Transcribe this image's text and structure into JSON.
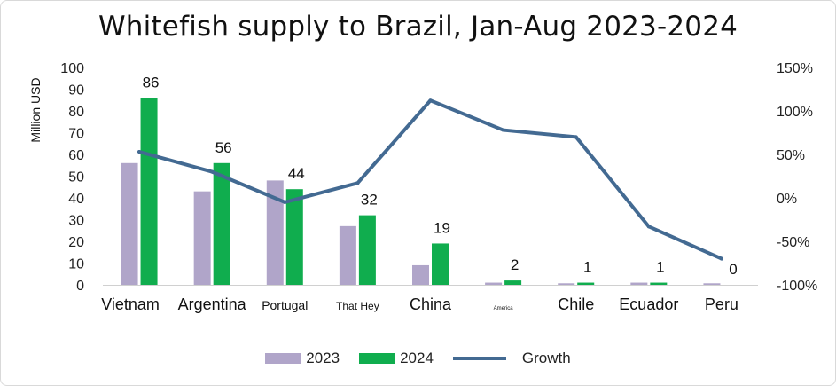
{
  "title": "Whitefish supply to Brazil, Jan-Aug 2023-2024",
  "colors": {
    "s2023": "#b0a5c9",
    "s2024": "#10ad4e",
    "growth": "#436a92"
  },
  "chart_data": {
    "type": "bar",
    "title": "Whitefish supply to Brazil, Jan-Aug 2023-2024",
    "categories": [
      "Vietnam",
      "Argentina",
      "Portugal",
      "That Hey",
      "China",
      "America",
      "Chile",
      "Ecuador",
      "Peru"
    ],
    "series": [
      {
        "name": "2023",
        "type": "bar",
        "axis": "left",
        "values": [
          56,
          43,
          48,
          27,
          9,
          1,
          0.7,
          1,
          0.7
        ]
      },
      {
        "name": "2024",
        "type": "bar",
        "axis": "left",
        "values": [
          86,
          56,
          44,
          32,
          19,
          2,
          1,
          1,
          0
        ],
        "labels": [
          "86",
          "56",
          "44",
          "32",
          "19",
          "2",
          "1",
          "1",
          "0"
        ]
      },
      {
        "name": "Growth",
        "type": "line",
        "axis": "right",
        "values": [
          53,
          30,
          -5,
          17,
          112,
          78,
          70,
          -33,
          -70
        ]
      }
    ],
    "ylabel": "Million USD",
    "ylim": [
      0,
      100
    ],
    "yticks": [
      "0",
      "10",
      "20",
      "30",
      "40",
      "50",
      "60",
      "70",
      "80",
      "90",
      "100"
    ],
    "y2lim": [
      -100,
      150
    ],
    "y2ticks": [
      "-100%",
      "-50%",
      "0%",
      "50%",
      "100%",
      "150%"
    ],
    "legend": "bottom",
    "grid": false
  }
}
